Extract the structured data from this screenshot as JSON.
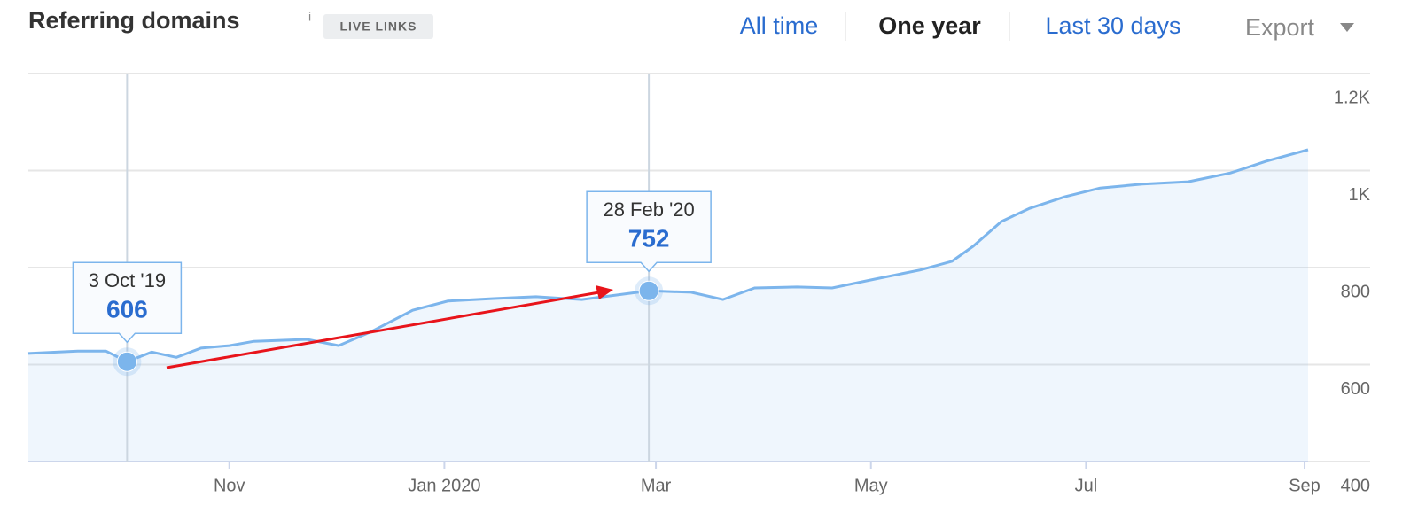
{
  "header": {
    "title": "Referring domains",
    "info": "i",
    "badge": "LIVE LINKS",
    "tabs": [
      "All time",
      "One year",
      "Last 30 days"
    ],
    "active_tab": 1,
    "export": "Export"
  },
  "chart_data": {
    "type": "line",
    "xlim": [
      "2019-09-05",
      "2020-09-02"
    ],
    "xticks": [
      {
        "value": "2019-11-01",
        "label": "Nov"
      },
      {
        "value": "2020-01-01",
        "label": "Jan 2020"
      },
      {
        "value": "2020-03-01",
        "label": "Mar"
      },
      {
        "value": "2020-05-01",
        "label": "May"
      },
      {
        "value": "2020-07-01",
        "label": "Jul"
      },
      {
        "value": "2020-09-01",
        "label": "Sep"
      }
    ],
    "ylim": [
      400,
      1200
    ],
    "yticks": [
      {
        "value": 1200,
        "label": "1.2K"
      },
      {
        "value": 1000,
        "label": "1K"
      },
      800,
      600,
      400
    ],
    "grid": true,
    "series": [
      {
        "color": "#7cb5ec",
        "x": [
          "2019-09-05",
          "2019-09-19",
          "2019-09-27",
          "2019-10-03",
          "2019-10-10",
          "2019-10-17",
          "2019-10-24",
          "2019-11-01",
          "2019-11-08",
          "2019-11-23",
          "2019-12-02",
          "2019-12-11",
          "2019-12-23",
          "2020-01-02",
          "2020-01-15",
          "2020-01-27",
          "2020-02-09",
          "2020-02-28",
          "2020-03-11",
          "2020-03-20",
          "2020-03-29",
          "2020-04-10",
          "2020-04-20",
          "2020-05-02",
          "2020-05-15",
          "2020-05-24",
          "2020-05-30",
          "2020-06-07",
          "2020-06-15",
          "2020-06-25",
          "2020-07-05",
          "2020-07-17",
          "2020-07-30",
          "2020-08-11",
          "2020-08-21",
          "2020-09-02"
        ],
        "values": [
          623,
          628,
          628,
          606,
          626,
          615,
          634,
          639,
          648,
          652,
          639,
          667,
          712,
          731,
          736,
          740,
          734,
          752,
          749,
          734,
          758,
          760,
          758,
          776,
          795,
          813,
          844,
          895,
          922,
          946,
          964,
          972,
          977,
          995,
          1019,
          1043
        ]
      }
    ],
    "markers": [
      {
        "point": 3,
        "label": "3 Oct '19",
        "value": 606
      },
      {
        "point": 17,
        "label": "28 Feb '20",
        "value": 752
      }
    ]
  }
}
